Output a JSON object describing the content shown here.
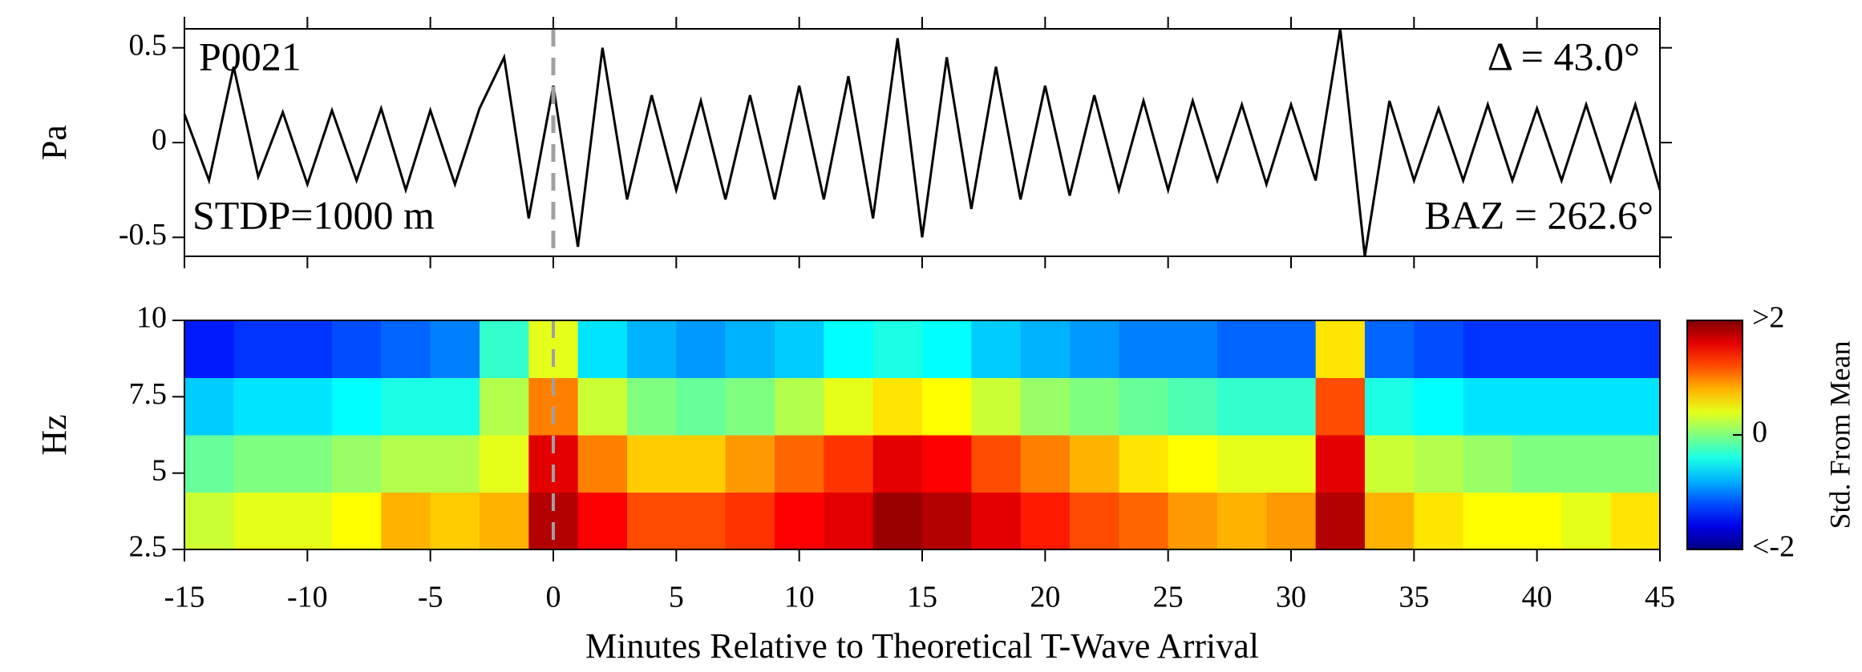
{
  "chart_data": [
    {
      "type": "line",
      "ylabel": "Pa",
      "annotations": [
        "P0021",
        "Δ = 43.0°",
        "STDP=1000 m",
        "BAZ = 262.6°"
      ],
      "x": [
        -15,
        -14,
        -13,
        -12,
        -11,
        -10,
        -9,
        -8,
        -7,
        -6,
        -5,
        -4,
        -3,
        -2,
        -1,
        0,
        1,
        2,
        3,
        4,
        5,
        6,
        7,
        8,
        9,
        10,
        11,
        12,
        13,
        14,
        15,
        16,
        17,
        18,
        19,
        20,
        21,
        22,
        23,
        24,
        25,
        26,
        27,
        28,
        29,
        30,
        31,
        32,
        33,
        34,
        35,
        36,
        37,
        38,
        39,
        40,
        41,
        42,
        43,
        44,
        45
      ],
      "values": [
        0.15,
        -0.2,
        0.4,
        -0.18,
        0.16,
        -0.22,
        0.17,
        -0.2,
        0.18,
        -0.25,
        0.17,
        -0.22,
        0.18,
        0.45,
        -0.4,
        0.3,
        -0.55,
        0.5,
        -0.3,
        0.25,
        -0.25,
        0.22,
        -0.3,
        0.25,
        -0.3,
        0.3,
        -0.3,
        0.35,
        -0.4,
        0.55,
        -0.5,
        0.45,
        -0.35,
        0.4,
        -0.3,
        0.3,
        -0.28,
        0.25,
        -0.25,
        0.22,
        -0.25,
        0.22,
        -0.2,
        0.2,
        -0.22,
        0.2,
        -0.2,
        0.6,
        -0.6,
        0.22,
        -0.2,
        0.18,
        -0.2,
        0.2,
        -0.2,
        0.18,
        -0.2,
        0.2,
        -0.2,
        0.2,
        -0.25
      ],
      "color": "#000000",
      "marker_x": 0,
      "marker_color": "#a0a0a0",
      "xlim": [
        -15,
        45
      ],
      "xticks": [
        -15,
        -10,
        -5,
        0,
        5,
        10,
        15,
        20,
        25,
        30,
        35,
        40,
        45
      ],
      "ylim": [
        -0.6,
        0.6
      ],
      "yticks": [
        -0.5,
        0,
        0.5
      ]
    },
    {
      "type": "heatmap",
      "ylabel": "Hz",
      "xlabel": "Minutes Relative to Theoretical T-Wave Arrival",
      "colorbar_label": "Std. From Mean",
      "colormap": "jet",
      "marker_x": 0,
      "marker_color": "#a0a0a0",
      "x_edges": [
        -15,
        -13,
        -11,
        -9,
        -7,
        -5,
        -3,
        -1,
        1,
        3,
        5,
        7,
        9,
        11,
        13,
        15,
        17,
        19,
        21,
        23,
        25,
        27,
        29,
        31,
        33,
        35,
        37,
        39,
        41,
        43,
        45
      ],
      "y_edges": [
        2.5,
        4.375,
        6.25,
        8.125,
        10
      ],
      "values": [
        [
          0.3,
          0.4,
          0.4,
          0.5,
          0.8,
          0.7,
          0.8,
          1.8,
          1.5,
          1.2,
          1.2,
          1.3,
          1.5,
          1.6,
          1.9,
          1.8,
          1.6,
          1.4,
          1.2,
          1.1,
          0.9,
          0.8,
          0.9,
          1.8,
          0.8,
          0.6,
          0.5,
          0.5,
          0.4,
          0.6
        ],
        [
          -0.1,
          0,
          0,
          0.1,
          0.2,
          0.2,
          0.4,
          1.6,
          1.0,
          0.7,
          0.7,
          0.9,
          1.1,
          1.3,
          1.6,
          1.5,
          1.2,
          1.0,
          0.8,
          0.6,
          0.5,
          0.4,
          0.4,
          1.6,
          0.3,
          0.2,
          0.1,
          0,
          0,
          0
        ],
        [
          -0.7,
          -0.6,
          -0.6,
          -0.5,
          -0.4,
          -0.4,
          0.2,
          1.0,
          0.3,
          0,
          -0.1,
          0,
          0.2,
          0.4,
          0.6,
          0.5,
          0.3,
          0.1,
          0,
          -0.1,
          -0.2,
          -0.3,
          -0.3,
          1.2,
          -0.4,
          -0.5,
          -0.6,
          -0.6,
          -0.6,
          -0.6
        ],
        [
          -1.4,
          -1.3,
          -1.3,
          -1.2,
          -1.1,
          -1.0,
          -0.3,
          0.4,
          -0.6,
          -0.8,
          -0.9,
          -0.8,
          -0.7,
          -0.5,
          -0.4,
          -0.5,
          -0.7,
          -0.8,
          -0.9,
          -1.0,
          -1.0,
          -1.1,
          -1.1,
          0.6,
          -1.1,
          -1.2,
          -1.3,
          -1.3,
          -1.3,
          -1.3
        ]
      ],
      "zlim": [
        -2,
        2
      ],
      "zticks": [
        {
          "value": -2,
          "label": "<-2"
        },
        0,
        {
          "value": 2,
          "label": ">2"
        }
      ],
      "xlim": [
        -15,
        45
      ],
      "xticks": [
        -15,
        -10,
        -5,
        0,
        5,
        10,
        15,
        20,
        25,
        30,
        35,
        40,
        45
      ],
      "ylim": [
        2.5,
        10
      ],
      "yticks": [
        2.5,
        5,
        7.5,
        10
      ]
    }
  ]
}
